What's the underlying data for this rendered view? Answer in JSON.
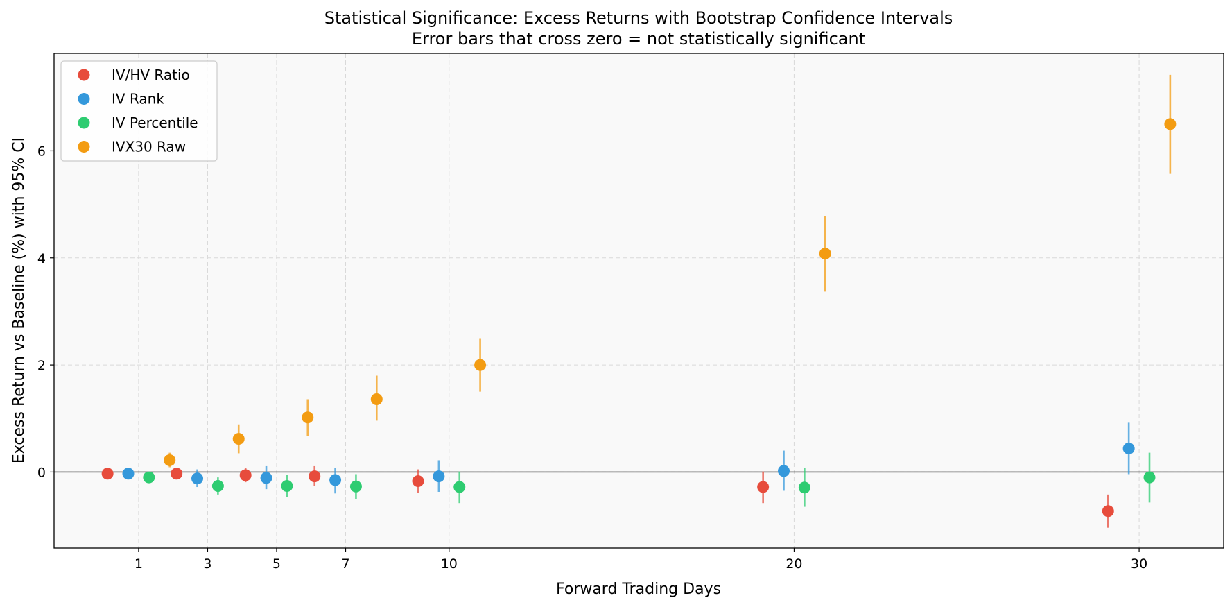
{
  "chart_data": {
    "type": "scatter",
    "title": "Statistical Significance: Excess Returns with Bootstrap Confidence Intervals",
    "subtitle": "Error bars that cross zero = not statistically significant",
    "xlabel": "Forward Trading Days",
    "ylabel": "Excess Return vs Baseline (%) with 95% CI",
    "xlim": [
      -1.45,
      32.45
    ],
    "ylim": [
      -1.42,
      7.82
    ],
    "xticks": [
      1,
      3,
      5,
      7,
      10,
      20,
      30
    ],
    "yticks": [
      0,
      2,
      4,
      6
    ],
    "grid": true,
    "zero_line": true,
    "legend_position": "top-left",
    "series": [
      {
        "name": "IV/HV Ratio",
        "color": "#e74c3c",
        "points": [
          {
            "x": 1,
            "y": -0.03,
            "lo": -0.09,
            "hi": 0.03
          },
          {
            "x": 3,
            "y": -0.03,
            "lo": -0.13,
            "hi": 0.07
          },
          {
            "x": 5,
            "y": -0.06,
            "lo": -0.19,
            "hi": 0.08
          },
          {
            "x": 7,
            "y": -0.08,
            "lo": -0.26,
            "hi": 0.11
          },
          {
            "x": 10,
            "y": -0.17,
            "lo": -0.39,
            "hi": 0.05
          },
          {
            "x": 20,
            "y": -0.28,
            "lo": -0.58,
            "hi": 0.01
          },
          {
            "x": 30,
            "y": -0.73,
            "lo": -1.04,
            "hi": -0.42
          }
        ]
      },
      {
        "name": "IV Rank",
        "color": "#3498db",
        "points": [
          {
            "x": 1,
            "y": -0.03,
            "lo": -0.09,
            "hi": 0.03
          },
          {
            "x": 3,
            "y": -0.12,
            "lo": -0.28,
            "hi": 0.05
          },
          {
            "x": 5,
            "y": -0.11,
            "lo": -0.32,
            "hi": 0.11
          },
          {
            "x": 7,
            "y": -0.15,
            "lo": -0.4,
            "hi": 0.08
          },
          {
            "x": 10,
            "y": -0.08,
            "lo": -0.37,
            "hi": 0.22
          },
          {
            "x": 20,
            "y": 0.02,
            "lo": -0.35,
            "hi": 0.4
          },
          {
            "x": 30,
            "y": 0.44,
            "lo": -0.04,
            "hi": 0.92
          }
        ]
      },
      {
        "name": "IV Percentile",
        "color": "#2ecc71",
        "points": [
          {
            "x": 1,
            "y": -0.1,
            "lo": -0.17,
            "hi": -0.03
          },
          {
            "x": 3,
            "y": -0.26,
            "lo": -0.42,
            "hi": -0.1
          },
          {
            "x": 5,
            "y": -0.26,
            "lo": -0.47,
            "hi": -0.05
          },
          {
            "x": 7,
            "y": -0.27,
            "lo": -0.5,
            "hi": -0.04
          },
          {
            "x": 10,
            "y": -0.28,
            "lo": -0.58,
            "hi": 0.01
          },
          {
            "x": 20,
            "y": -0.29,
            "lo": -0.65,
            "hi": 0.08
          },
          {
            "x": 30,
            "y": -0.1,
            "lo": -0.57,
            "hi": 0.36
          }
        ]
      },
      {
        "name": "IVX30 Raw",
        "color": "#f39c12",
        "points": [
          {
            "x": 1,
            "y": 0.22,
            "lo": 0.09,
            "hi": 0.36
          },
          {
            "x": 3,
            "y": 0.62,
            "lo": 0.35,
            "hi": 0.89
          },
          {
            "x": 5,
            "y": 1.02,
            "lo": 0.67,
            "hi": 1.36
          },
          {
            "x": 7,
            "y": 1.36,
            "lo": 0.96,
            "hi": 1.8
          },
          {
            "x": 10,
            "y": 2.0,
            "lo": 1.5,
            "hi": 2.5
          },
          {
            "x": 20,
            "y": 4.08,
            "lo": 3.37,
            "hi": 4.78
          },
          {
            "x": 30,
            "y": 6.5,
            "lo": 5.57,
            "hi": 7.42
          }
        ]
      }
    ]
  }
}
